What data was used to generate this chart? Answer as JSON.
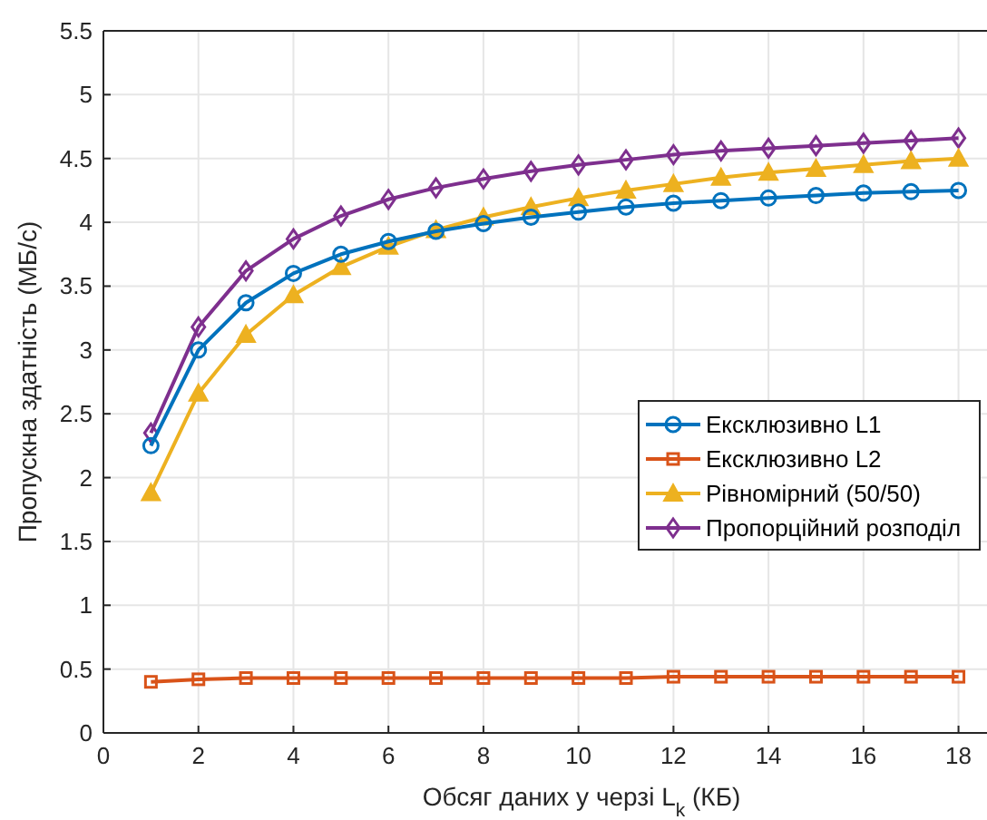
{
  "chart_data": {
    "type": "line",
    "xlabel": "Обсяг даних у черзі L$_{k}$ (КБ)",
    "ylabel": "Пропускна здатність (МБ/с)",
    "x": [
      1,
      2,
      3,
      4,
      5,
      6,
      7,
      8,
      9,
      10,
      11,
      12,
      13,
      14,
      15,
      16,
      17,
      18
    ],
    "xlim": [
      0,
      18.6
    ],
    "xticks": [
      0,
      2,
      4,
      6,
      8,
      10,
      12,
      14,
      16,
      18
    ],
    "ylim": [
      0,
      5.5
    ],
    "yticks": [
      0,
      0.5,
      1,
      1.5,
      2,
      2.5,
      3,
      3.5,
      4,
      4.5,
      5,
      5.5
    ],
    "grid": true,
    "legend": "right",
    "line_style": "solid",
    "series": [
      {
        "name": "Ексклюзивно L1",
        "color": "#0072bd",
        "marker": "circle",
        "values": [
          2.25,
          3.0,
          3.37,
          3.6,
          3.75,
          3.85,
          3.93,
          3.99,
          4.04,
          4.08,
          4.12,
          4.15,
          4.17,
          4.19,
          4.21,
          4.23,
          4.24,
          4.25
        ]
      },
      {
        "name": "Ексклюзивно L2",
        "color": "#d95319",
        "marker": "square",
        "values": [
          0.4,
          0.42,
          0.43,
          0.43,
          0.43,
          0.43,
          0.43,
          0.43,
          0.43,
          0.43,
          0.43,
          0.44,
          0.44,
          0.44,
          0.44,
          0.44,
          0.44,
          0.44
        ]
      },
      {
        "name": "Рівномірний (50/50)",
        "color": "#edb120",
        "marker": "triangle",
        "values": [
          1.88,
          2.66,
          3.12,
          3.43,
          3.65,
          3.81,
          3.94,
          4.04,
          4.12,
          4.19,
          4.25,
          4.3,
          4.35,
          4.39,
          4.42,
          4.45,
          4.48,
          4.5
        ]
      },
      {
        "name": "Пропорційний розподіл",
        "color": "#7e2f8e",
        "marker": "diamond",
        "values": [
          2.35,
          3.18,
          3.62,
          3.87,
          4.05,
          4.18,
          4.27,
          4.34,
          4.4,
          4.45,
          4.49,
          4.53,
          4.56,
          4.58,
          4.6,
          4.62,
          4.64,
          4.66
        ]
      }
    ]
  }
}
